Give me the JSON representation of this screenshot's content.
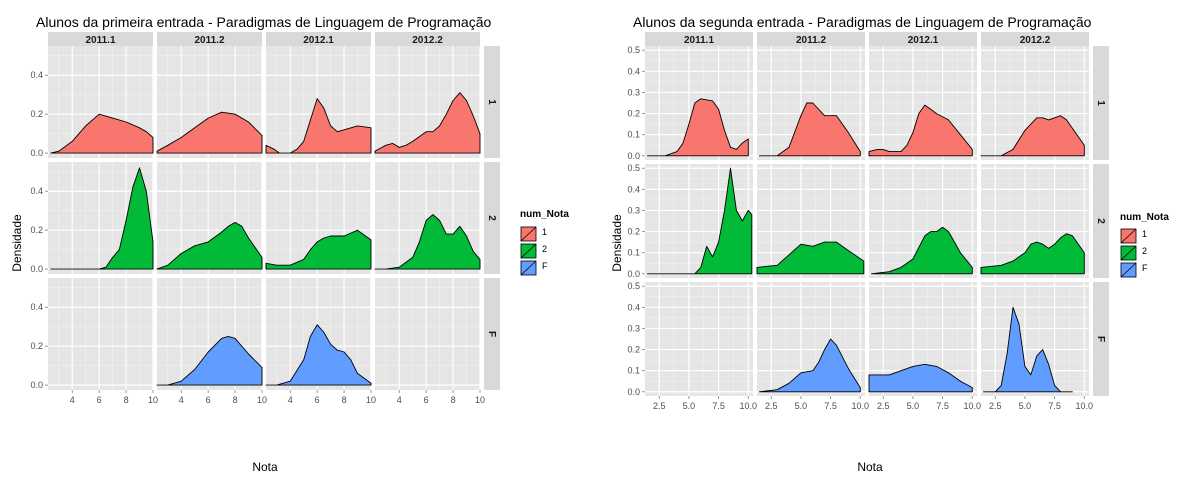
{
  "chart_data": [
    {
      "type": "area",
      "title": "Alunos da primeira entrada -  Paradigmas de Linguagem de Programação",
      "xlabel": "Nota",
      "ylabel": "Densidade",
      "columns": [
        "2011.1",
        "2011.2",
        "2012.1",
        "2012.2"
      ],
      "rows": [
        "1",
        "2",
        "F"
      ],
      "xlim": [
        2.2,
        10
      ],
      "ylim": [
        -0.025,
        0.55
      ],
      "xticks": [
        4,
        6,
        8,
        10
      ],
      "yticks": [
        0.0,
        0.2,
        0.4
      ],
      "ytick_labels": [
        "0.0",
        "0.2",
        "0.4"
      ],
      "legend": {
        "title": "num_Nota",
        "entries": [
          "1",
          "2",
          "F"
        ],
        "placement": "right"
      },
      "grid": true,
      "panels": [
        {
          "row": "1",
          "col": "2011.1",
          "x": [
            2.4,
            3,
            4,
            5,
            6,
            7,
            8,
            9,
            9.5,
            10
          ],
          "y": [
            0,
            0.01,
            0.06,
            0.14,
            0.2,
            0.18,
            0.16,
            0.13,
            0.11,
            0.08
          ]
        },
        {
          "row": "1",
          "col": "2011.2",
          "x": [
            2.2,
            3,
            4,
            5,
            6,
            7,
            8,
            9,
            10
          ],
          "y": [
            0.01,
            0.04,
            0.08,
            0.13,
            0.18,
            0.21,
            0.2,
            0.16,
            0.09
          ]
        },
        {
          "row": "1",
          "col": "2012.1",
          "x": [
            2.2,
            2.8,
            3.2,
            4,
            4.5,
            5,
            5.5,
            6,
            6.5,
            7,
            7.5,
            8,
            9,
            10
          ],
          "y": [
            0.04,
            0.02,
            0,
            0,
            0.02,
            0.06,
            0.17,
            0.28,
            0.23,
            0.14,
            0.11,
            0.12,
            0.14,
            0.13
          ]
        },
        {
          "row": "1",
          "col": "2012.2",
          "x": [
            2.2,
            3,
            3.5,
            4,
            4.5,
            5,
            6,
            6.5,
            7,
            7.5,
            8,
            8.5,
            9,
            9.5,
            10
          ],
          "y": [
            0.01,
            0.04,
            0.05,
            0.03,
            0.04,
            0.06,
            0.11,
            0.11,
            0.14,
            0.2,
            0.27,
            0.31,
            0.27,
            0.19,
            0.1
          ]
        },
        {
          "row": "2",
          "col": "2011.1",
          "x": [
            2.4,
            5,
            6,
            6.5,
            7,
            7.5,
            8,
            8.5,
            9,
            9.5,
            10
          ],
          "y": [
            0,
            0,
            0,
            0.01,
            0.06,
            0.1,
            0.25,
            0.42,
            0.52,
            0.4,
            0.14
          ]
        },
        {
          "row": "2",
          "col": "2011.2",
          "x": [
            2.2,
            3,
            4,
            5,
            6,
            7,
            7.5,
            8,
            8.5,
            9,
            10
          ],
          "y": [
            0,
            0.02,
            0.08,
            0.12,
            0.14,
            0.19,
            0.22,
            0.24,
            0.22,
            0.16,
            0.06
          ]
        },
        {
          "row": "2",
          "col": "2012.1",
          "x": [
            2.2,
            3,
            4,
            5,
            5.5,
            6,
            6.5,
            7,
            8,
            9,
            10
          ],
          "y": [
            0.03,
            0.02,
            0.02,
            0.05,
            0.1,
            0.14,
            0.16,
            0.17,
            0.17,
            0.2,
            0.15
          ]
        },
        {
          "row": "2",
          "col": "2012.2",
          "x": [
            2.2,
            3,
            4,
            5,
            5.5,
            6,
            6.5,
            7,
            7.5,
            8,
            8.5,
            9,
            9.5,
            10
          ],
          "y": [
            0,
            0,
            0.01,
            0.06,
            0.14,
            0.25,
            0.28,
            0.25,
            0.18,
            0.18,
            0.22,
            0.17,
            0.09,
            0.05
          ]
        },
        {
          "row": "F",
          "col": "2011.2",
          "x": [
            2.2,
            3,
            4,
            5,
            6,
            7,
            7.5,
            8,
            9,
            10
          ],
          "y": [
            0,
            0,
            0.02,
            0.08,
            0.17,
            0.24,
            0.25,
            0.24,
            0.16,
            0.09
          ]
        },
        {
          "row": "F",
          "col": "2012.1",
          "x": [
            2.2,
            3,
            4,
            5,
            5.5,
            6,
            6.5,
            7,
            7.5,
            8,
            8.5,
            9,
            10
          ],
          "y": [
            0,
            0,
            0.02,
            0.13,
            0.25,
            0.31,
            0.27,
            0.21,
            0.18,
            0.17,
            0.13,
            0.06,
            0.01
          ]
        }
      ]
    },
    {
      "type": "area",
      "title": "Alunos da segunda entrada -  Paradigmas de Linguagem de Programação",
      "xlabel": "Nota",
      "ylabel": "Densidade",
      "columns": [
        "2011.1",
        "2011.2",
        "2012.1",
        "2012.2"
      ],
      "rows": [
        "1",
        "2",
        "F"
      ],
      "xlim": [
        1.3,
        10.4
      ],
      "ylim": [
        -0.02,
        0.52
      ],
      "xticks": [
        2.5,
        5.0,
        7.5,
        10.0
      ],
      "xtick_labels": [
        "2.5",
        "5.0",
        "7.5",
        "10.0"
      ],
      "yticks": [
        0.0,
        0.1,
        0.2,
        0.3,
        0.4,
        0.5
      ],
      "ytick_labels": [
        "0.0",
        "0.1",
        "0.2",
        "0.3",
        "0.4",
        "0.5"
      ],
      "legend": {
        "title": "num_Nota",
        "entries": [
          "1",
          "2",
          "F"
        ],
        "placement": "right"
      },
      "grid": true,
      "panels": [
        {
          "row": "1",
          "col": "2011.1",
          "x": [
            1.5,
            3,
            4,
            4.5,
            5,
            5.5,
            6,
            7,
            7.5,
            8,
            8.5,
            9,
            9.5,
            10
          ],
          "y": [
            0,
            0,
            0.02,
            0.06,
            0.15,
            0.25,
            0.27,
            0.26,
            0.22,
            0.12,
            0.04,
            0.03,
            0.06,
            0.08
          ]
        },
        {
          "row": "1",
          "col": "2011.2",
          "x": [
            1.5,
            3,
            4,
            5,
            5.5,
            6,
            7,
            8,
            9,
            10
          ],
          "y": [
            0,
            0,
            0.04,
            0.19,
            0.25,
            0.25,
            0.19,
            0.19,
            0.11,
            0.02
          ]
        },
        {
          "row": "1",
          "col": "2012.1",
          "x": [
            1.3,
            2,
            2.5,
            3,
            4,
            4.5,
            5,
            5.5,
            6,
            6.5,
            7,
            8,
            9,
            10
          ],
          "y": [
            0.02,
            0.03,
            0.03,
            0.02,
            0.02,
            0.05,
            0.11,
            0.2,
            0.24,
            0.22,
            0.2,
            0.17,
            0.1,
            0.03
          ]
        },
        {
          "row": "1",
          "col": "2012.2",
          "x": [
            1.3,
            3,
            4,
            5,
            6,
            6.5,
            7,
            7.5,
            8,
            8.5,
            9,
            10
          ],
          "y": [
            0,
            0,
            0.03,
            0.12,
            0.18,
            0.18,
            0.17,
            0.18,
            0.19,
            0.17,
            0.13,
            0.05
          ]
        },
        {
          "row": "2",
          "col": "2011.1",
          "x": [
            1.5,
            5,
            5.5,
            6,
            6.5,
            7,
            7.5,
            8,
            8.5,
            9,
            9.5,
            10,
            10.3
          ],
          "y": [
            0,
            0,
            0,
            0.03,
            0.13,
            0.08,
            0.15,
            0.3,
            0.5,
            0.3,
            0.25,
            0.3,
            0.28
          ]
        },
        {
          "row": "2",
          "col": "2011.2",
          "x": [
            1.3,
            3,
            4,
            5,
            6,
            7,
            8,
            9,
            10.3
          ],
          "y": [
            0.03,
            0.04,
            0.09,
            0.14,
            0.13,
            0.15,
            0.15,
            0.11,
            0.06
          ]
        },
        {
          "row": "2",
          "col": "2012.1",
          "x": [
            1.5,
            3,
            4,
            5,
            6,
            6.5,
            7,
            7.5,
            8,
            8.5,
            9,
            10
          ],
          "y": [
            0,
            0.01,
            0.03,
            0.07,
            0.18,
            0.2,
            0.2,
            0.22,
            0.2,
            0.15,
            0.1,
            0.03
          ]
        },
        {
          "row": "2",
          "col": "2012.2",
          "x": [
            1.3,
            3,
            4,
            5,
            5.5,
            6,
            6.5,
            7,
            7.5,
            8,
            8.5,
            9,
            10
          ],
          "y": [
            0.03,
            0.04,
            0.06,
            0.1,
            0.14,
            0.15,
            0.14,
            0.12,
            0.14,
            0.17,
            0.19,
            0.18,
            0.1
          ]
        },
        {
          "row": "F",
          "col": "2011.2",
          "x": [
            1.5,
            3,
            4,
            5,
            6,
            6.5,
            7,
            7.5,
            8,
            9,
            10
          ],
          "y": [
            0,
            0.01,
            0.04,
            0.09,
            0.1,
            0.14,
            0.2,
            0.25,
            0.22,
            0.11,
            0.02
          ]
        },
        {
          "row": "F",
          "col": "2012.1",
          "x": [
            1.3,
            3,
            4,
            5,
            6,
            7,
            8,
            9,
            10
          ],
          "y": [
            0.08,
            0.08,
            0.1,
            0.12,
            0.13,
            0.12,
            0.09,
            0.05,
            0.02
          ]
        },
        {
          "row": "F",
          "col": "2012.2",
          "x": [
            1.5,
            2.5,
            3,
            3.5,
            4,
            4.5,
            5,
            5.5,
            6,
            6.5,
            7,
            7.5,
            8,
            9
          ],
          "y": [
            0,
            0,
            0.03,
            0.18,
            0.4,
            0.32,
            0.12,
            0.08,
            0.17,
            0.2,
            0.13,
            0.03,
            0,
            0
          ]
        }
      ]
    }
  ]
}
